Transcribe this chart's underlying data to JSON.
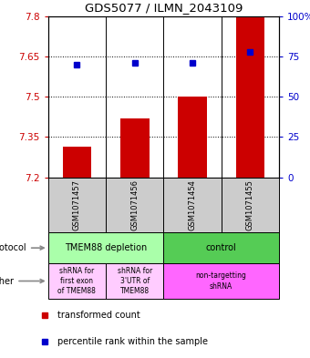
{
  "title": "GDS5077 / ILMN_2043109",
  "samples": [
    "GSM1071457",
    "GSM1071456",
    "GSM1071454",
    "GSM1071455"
  ],
  "transformed_counts": [
    7.315,
    7.42,
    7.5,
    7.8
  ],
  "percentile_ranks": [
    70,
    71,
    71,
    78
  ],
  "y_min": 7.2,
  "y_max": 7.8,
  "y_ticks": [
    7.2,
    7.35,
    7.5,
    7.65,
    7.8
  ],
  "y_tick_labels": [
    "7.2",
    "7.35",
    "7.5",
    "7.65",
    "7.8"
  ],
  "right_y_ticks": [
    0,
    25,
    50,
    75,
    100
  ],
  "right_y_tick_labels": [
    "0",
    "25",
    "50",
    "75",
    "100%"
  ],
  "bar_color": "#cc0000",
  "dot_color": "#0000cc",
  "bar_bottom": 7.2,
  "proto_groups": [
    {
      "label": "TMEM88 depletion",
      "color": "#aaffaa",
      "start": 0,
      "end": 2
    },
    {
      "label": "control",
      "color": "#55cc55",
      "start": 2,
      "end": 4
    }
  ],
  "other_groups": [
    {
      "label": "shRNA for\nfirst exon\nof TMEM88",
      "color": "#ffccff",
      "start": 0,
      "end": 1
    },
    {
      "label": "shRNA for\n3'UTR of\nTMEM88",
      "color": "#ffccff",
      "start": 1,
      "end": 2
    },
    {
      "label": "non-targetting\nshRNA",
      "color": "#ff66ff",
      "start": 2,
      "end": 4
    }
  ],
  "legend_items": [
    {
      "color": "#cc0000",
      "label": "transformed count"
    },
    {
      "color": "#0000cc",
      "label": "percentile rank within the sample"
    }
  ],
  "bg_color": "#cccccc",
  "label_color_left": "#cc0000",
  "label_color_right": "#0000cc",
  "fig_width": 3.4,
  "fig_height": 3.93,
  "dpi": 100
}
